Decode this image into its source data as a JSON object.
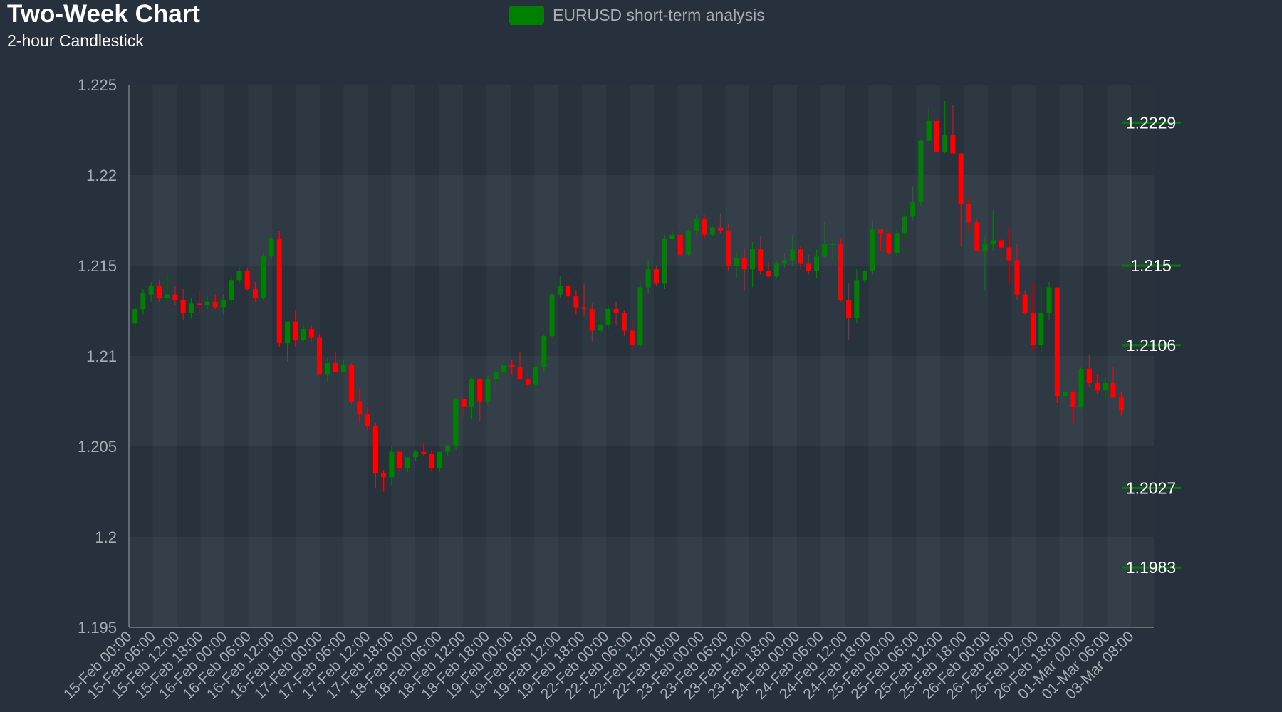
{
  "title": "Two-Week Chart",
  "subtitle": "2-hour Candlestick",
  "colors": {
    "background": "#27313e",
    "up": "#008000",
    "down": "#ff0000",
    "axis_text": "#a8adb4",
    "level_line": "#008000"
  },
  "chart_data": {
    "type": "candlestick",
    "title": "Two-Week Chart",
    "subtitle": "2-hour Candlestick",
    "legend": {
      "label": "EURUSD short-term analysis",
      "placement": "top-center"
    },
    "ylim": [
      1.195,
      1.225
    ],
    "y_ticks": [
      "1.195",
      "1.2",
      "1.205",
      "1.21",
      "1.215",
      "1.22",
      "1.225"
    ],
    "x_ticks": [
      "15-Feb 00:00",
      "15-Feb 06:00",
      "15-Feb 12:00",
      "15-Feb 18:00",
      "16-Feb 00:00",
      "16-Feb 06:00",
      "16-Feb 12:00",
      "16-Feb 18:00",
      "17-Feb 00:00",
      "17-Feb 06:00",
      "17-Feb 12:00",
      "17-Feb 18:00",
      "18-Feb 00:00",
      "18-Feb 06:00",
      "18-Feb 12:00",
      "18-Feb 18:00",
      "19-Feb 00:00",
      "19-Feb 06:00",
      "19-Feb 12:00",
      "19-Feb 18:00",
      "22-Feb 00:00",
      "22-Feb 06:00",
      "22-Feb 12:00",
      "22-Feb 18:00",
      "23-Feb 00:00",
      "23-Feb 06:00",
      "23-Feb 12:00",
      "23-Feb 18:00",
      "24-Feb 00:00",
      "24-Feb 06:00",
      "24-Feb 12:00",
      "24-Feb 18:00",
      "25-Feb 00:00",
      "25-Feb 06:00",
      "25-Feb 12:00",
      "25-Feb 18:00",
      "26-Feb 00:00",
      "26-Feb 06:00",
      "26-Feb 12:00",
      "26-Feb 18:00",
      "01-Mar 00:00",
      "01-Mar 06:00",
      "03-Mar 08:00"
    ],
    "levels": [
      {
        "label": "1.2229",
        "value": 1.2229
      },
      {
        "label": "1.215",
        "value": 1.215
      },
      {
        "label": "1.2106",
        "value": 1.2106
      },
      {
        "label": "1.2027",
        "value": 1.2027
      },
      {
        "label": "1.1983",
        "value": 1.1983
      }
    ],
    "candles": [
      [
        1.2118,
        1.2129,
        1.2115,
        1.2126
      ],
      [
        1.2126,
        1.2137,
        1.2123,
        1.2135
      ],
      [
        1.2134,
        1.2141,
        1.213,
        1.2139
      ],
      [
        1.2139,
        1.2142,
        1.213,
        1.2132
      ],
      [
        1.2132,
        1.2145,
        1.213,
        1.2134
      ],
      [
        1.2134,
        1.2139,
        1.2128,
        1.2131
      ],
      [
        1.2131,
        1.2137,
        1.212,
        1.2124
      ],
      [
        1.2124,
        1.2132,
        1.2121,
        1.2129
      ],
      [
        1.2129,
        1.2136,
        1.2124,
        1.2128
      ],
      [
        1.2128,
        1.2133,
        1.2126,
        1.213
      ],
      [
        1.213,
        1.2134,
        1.2126,
        1.2127
      ],
      [
        1.2127,
        1.2134,
        1.2123,
        1.2131
      ],
      [
        1.2131,
        1.2144,
        1.2129,
        1.2142
      ],
      [
        1.2142,
        1.2149,
        1.214,
        1.2147
      ],
      [
        1.2147,
        1.2149,
        1.2136,
        1.2137
      ],
      [
        1.2137,
        1.2141,
        1.213,
        1.2132
      ],
      [
        1.2132,
        1.2157,
        1.2131,
        1.2155
      ],
      [
        1.2155,
        1.2166,
        1.2153,
        1.2165
      ],
      [
        1.2165,
        1.2169,
        1.2105,
        1.2107
      ],
      [
        1.2107,
        1.2119,
        1.2097,
        1.2119
      ],
      [
        1.2119,
        1.2125,
        1.2105,
        1.2109
      ],
      [
        1.2109,
        1.2117,
        1.2108,
        1.2115
      ],
      [
        1.2115,
        1.2117,
        1.2108,
        1.211
      ],
      [
        1.211,
        1.2112,
        1.209,
        1.209
      ],
      [
        1.209,
        1.2099,
        1.2086,
        1.2096
      ],
      [
        1.2096,
        1.2102,
        1.2093,
        1.2091
      ],
      [
        1.2091,
        1.2098,
        1.2092,
        1.2095
      ],
      [
        1.2095,
        1.2096,
        1.2073,
        1.2075
      ],
      [
        1.2075,
        1.2082,
        1.2063,
        1.2068
      ],
      [
        1.2068,
        1.2072,
        1.2059,
        1.2061
      ],
      [
        1.2061,
        1.2063,
        1.2027,
        1.2035
      ],
      [
        1.2035,
        1.2037,
        1.2025,
        1.2033
      ],
      [
        1.2033,
        1.205,
        1.2028,
        1.2047
      ],
      [
        1.2047,
        1.2048,
        1.2036,
        1.2038
      ],
      [
        1.2038,
        1.2044,
        1.2036,
        1.2044
      ],
      [
        1.2044,
        1.2048,
        1.2042,
        1.2047
      ],
      [
        1.2047,
        1.2052,
        1.2045,
        1.2046
      ],
      [
        1.2046,
        1.2048,
        1.2036,
        1.2038
      ],
      [
        1.2038,
        1.2047,
        1.2036,
        1.2047
      ],
      [
        1.2047,
        1.2051,
        1.2045,
        1.205
      ],
      [
        1.205,
        1.2077,
        1.2048,
        1.2076
      ],
      [
        1.2076,
        1.2075,
        1.2066,
        1.2072
      ],
      [
        1.2072,
        1.2088,
        1.2065,
        1.2087
      ],
      [
        1.2087,
        1.2086,
        1.2064,
        1.2075
      ],
      [
        1.2075,
        1.2089,
        1.2073,
        1.2087
      ],
      [
        1.2087,
        1.2092,
        1.2084,
        1.2091
      ],
      [
        1.2091,
        1.2098,
        1.2089,
        1.2095
      ],
      [
        1.2095,
        1.2098,
        1.209,
        1.2094
      ],
      [
        1.2094,
        1.2102,
        1.2087,
        1.2087
      ],
      [
        1.2087,
        1.2092,
        1.2082,
        1.2084
      ],
      [
        1.2084,
        1.2096,
        1.2082,
        1.2094
      ],
      [
        1.2094,
        1.2112,
        1.2091,
        1.2111
      ],
      [
        1.2111,
        1.2135,
        1.211,
        1.2134
      ],
      [
        1.2134,
        1.2144,
        1.2132,
        1.2139
      ],
      [
        1.2139,
        1.2143,
        1.2128,
        1.2133
      ],
      [
        1.2133,
        1.2136,
        1.2123,
        1.2127
      ],
      [
        1.2127,
        1.214,
        1.2122,
        1.2126
      ],
      [
        1.2126,
        1.2129,
        1.2108,
        1.2114
      ],
      [
        1.2114,
        1.2121,
        1.2113,
        1.2117
      ],
      [
        1.2117,
        1.2128,
        1.2115,
        1.2126
      ],
      [
        1.2126,
        1.213,
        1.2117,
        1.2124
      ],
      [
        1.2124,
        1.2125,
        1.2111,
        1.2114
      ],
      [
        1.2114,
        1.212,
        1.2103,
        1.2106
      ],
      [
        1.2106,
        1.2141,
        1.2105,
        1.2138
      ],
      [
        1.2138,
        1.2153,
        1.2135,
        1.2148
      ],
      [
        1.2148,
        1.215,
        1.2139,
        1.214
      ],
      [
        1.214,
        1.2167,
        1.2137,
        1.2165
      ],
      [
        1.2165,
        1.2169,
        1.2164,
        1.2167
      ],
      [
        1.2167,
        1.2166,
        1.2155,
        1.2156
      ],
      [
        1.2156,
        1.217,
        1.2155,
        1.2169
      ],
      [
        1.2169,
        1.2178,
        1.2167,
        1.2176
      ],
      [
        1.2176,
        1.2178,
        1.2165,
        1.2167
      ],
      [
        1.2167,
        1.2172,
        1.2166,
        1.2171
      ],
      [
        1.2171,
        1.2179,
        1.2168,
        1.2169
      ],
      [
        1.2169,
        1.2173,
        1.2147,
        1.215
      ],
      [
        1.215,
        1.2157,
        1.2143,
        1.2154
      ],
      [
        1.2154,
        1.216,
        1.2136,
        1.2148
      ],
      [
        1.2148,
        1.2163,
        1.2138,
        1.2159
      ],
      [
        1.2159,
        1.2166,
        1.2145,
        1.2147
      ],
      [
        1.2147,
        1.2152,
        1.2143,
        1.2144
      ],
      [
        1.2144,
        1.2153,
        1.2143,
        1.2151
      ],
      [
        1.2151,
        1.2157,
        1.2149,
        1.2153
      ],
      [
        1.2153,
        1.2167,
        1.215,
        1.2159
      ],
      [
        1.2159,
        1.2161,
        1.2148,
        1.2151
      ],
      [
        1.2151,
        1.2156,
        1.2145,
        1.2147
      ],
      [
        1.2147,
        1.2159,
        1.2143,
        1.2155
      ],
      [
        1.2155,
        1.2174,
        1.2154,
        1.2162
      ],
      [
        1.2162,
        1.2165,
        1.2153,
        1.2162
      ],
      [
        1.2162,
        1.2165,
        1.213,
        1.2131
      ],
      [
        1.2131,
        1.214,
        1.2109,
        1.2121
      ],
      [
        1.2121,
        1.2148,
        1.2118,
        1.2142
      ],
      [
        1.2142,
        1.2148,
        1.214,
        1.2147
      ],
      [
        1.2147,
        1.2175,
        1.2145,
        1.217
      ],
      [
        1.217,
        1.2169,
        1.2158,
        1.2168
      ],
      [
        1.2168,
        1.2166,
        1.2156,
        1.2157
      ],
      [
        1.2157,
        1.217,
        1.2155,
        1.2168
      ],
      [
        1.2168,
        1.2181,
        1.2165,
        1.2177
      ],
      [
        1.2177,
        1.2194,
        1.2175,
        1.2185
      ],
      [
        1.2185,
        1.222,
        1.2183,
        1.2219
      ],
      [
        1.2219,
        1.2237,
        1.2218,
        1.223
      ],
      [
        1.223,
        1.2233,
        1.2213,
        1.2213
      ],
      [
        1.2213,
        1.2241,
        1.2212,
        1.2222
      ],
      [
        1.2222,
        1.2239,
        1.2213,
        1.2212
      ],
      [
        1.2212,
        1.2209,
        1.2161,
        1.2184
      ],
      [
        1.2184,
        1.2188,
        1.2169,
        1.2174
      ],
      [
        1.2174,
        1.2176,
        1.2158,
        1.2158
      ],
      [
        1.2158,
        1.2166,
        1.2136,
        1.2162
      ],
      [
        1.2162,
        1.218,
        1.2158,
        1.2164
      ],
      [
        1.2164,
        1.2166,
        1.2152,
        1.216
      ],
      [
        1.216,
        1.2171,
        1.214,
        1.2153
      ],
      [
        1.2153,
        1.2162,
        1.2131,
        1.2134
      ],
      [
        1.2134,
        1.2136,
        1.2123,
        1.2124
      ],
      [
        1.2124,
        1.214,
        1.2102,
        1.2106
      ],
      [
        1.2106,
        1.2138,
        1.2102,
        1.2124
      ],
      [
        1.2124,
        1.2141,
        1.212,
        1.2138
      ],
      [
        1.2138,
        1.2138,
        1.2074,
        1.2078
      ],
      [
        1.2078,
        1.2089,
        1.2074,
        1.208
      ],
      [
        1.208,
        1.2082,
        1.2063,
        1.2072
      ],
      [
        1.2072,
        1.2094,
        1.2071,
        1.2093
      ],
      [
        1.2093,
        1.2101,
        1.2083,
        1.2085
      ],
      [
        1.2085,
        1.209,
        1.2079,
        1.2081
      ],
      [
        1.2081,
        1.2088,
        1.2076,
        1.2085
      ],
      [
        1.2085,
        1.2094,
        1.2078,
        1.2077
      ],
      [
        1.2077,
        1.208,
        1.2067,
        1.207
      ]
    ]
  }
}
